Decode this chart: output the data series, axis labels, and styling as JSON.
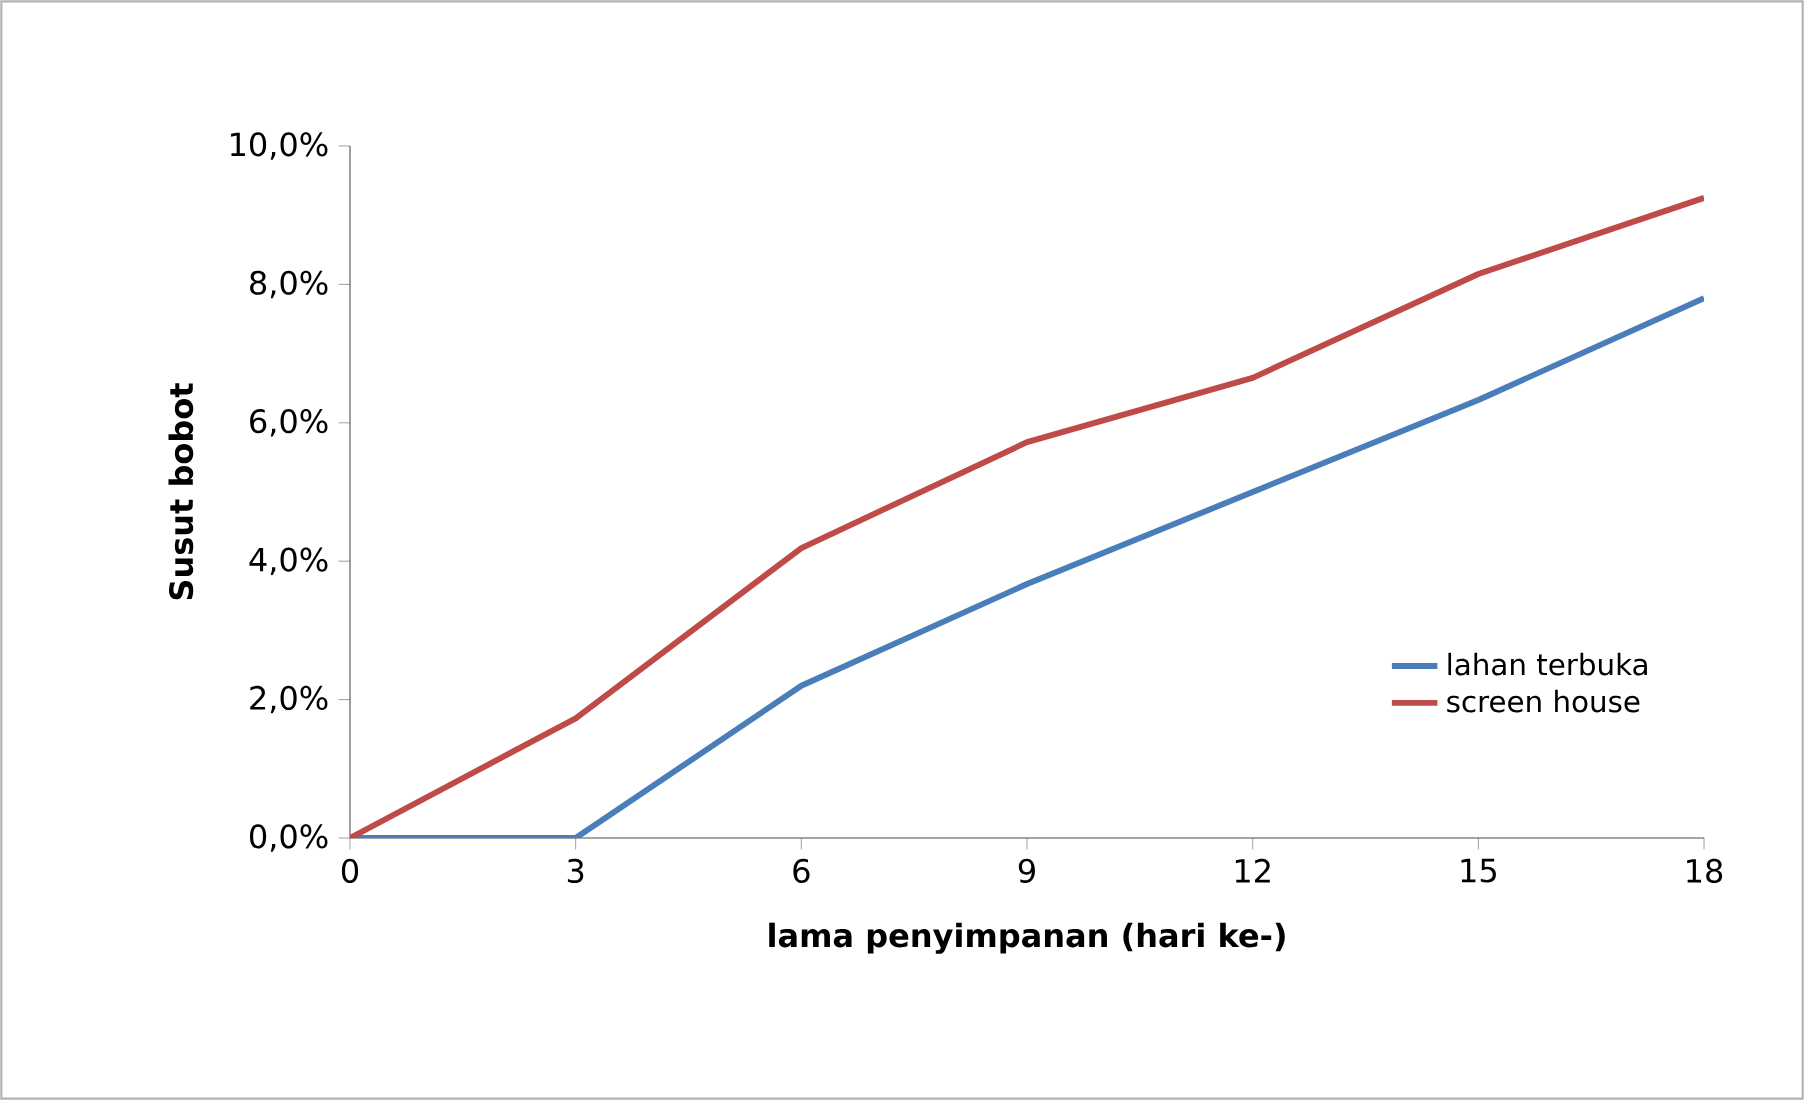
{
  "chart_data": {
    "type": "line",
    "xlabel": "lama penyimpanan (hari ke-)",
    "ylabel": "Susut bobot",
    "x": [
      0,
      3,
      6,
      9,
      12,
      15,
      18
    ],
    "series": [
      {
        "name": "lahan terbuka",
        "color": "#4a7ebb",
        "values": [
          0,
          0,
          2.2,
          3.67,
          5.0,
          6.33,
          7.8
        ]
      },
      {
        "name": "screen house",
        "color": "#be4b48",
        "values": [
          0,
          1.73,
          4.19,
          5.72,
          6.65,
          8.15,
          9.25
        ]
      }
    ],
    "xlim": [
      0,
      18
    ],
    "xticks": [
      0,
      3,
      6,
      9,
      12,
      15,
      18
    ],
    "ylim": [
      0,
      10
    ],
    "yticks": [
      {
        "value": 0,
        "label": "0,0%"
      },
      {
        "value": 2,
        "label": "2,0%"
      },
      {
        "value": 4,
        "label": "4,0%"
      },
      {
        "value": 6,
        "label": "6,0%"
      },
      {
        "value": 8,
        "label": "8,0%"
      },
      {
        "value": 10,
        "label": "10,0%"
      }
    ],
    "legend": "right",
    "grid": false,
    "marker": "none",
    "line_style": "solid"
  }
}
